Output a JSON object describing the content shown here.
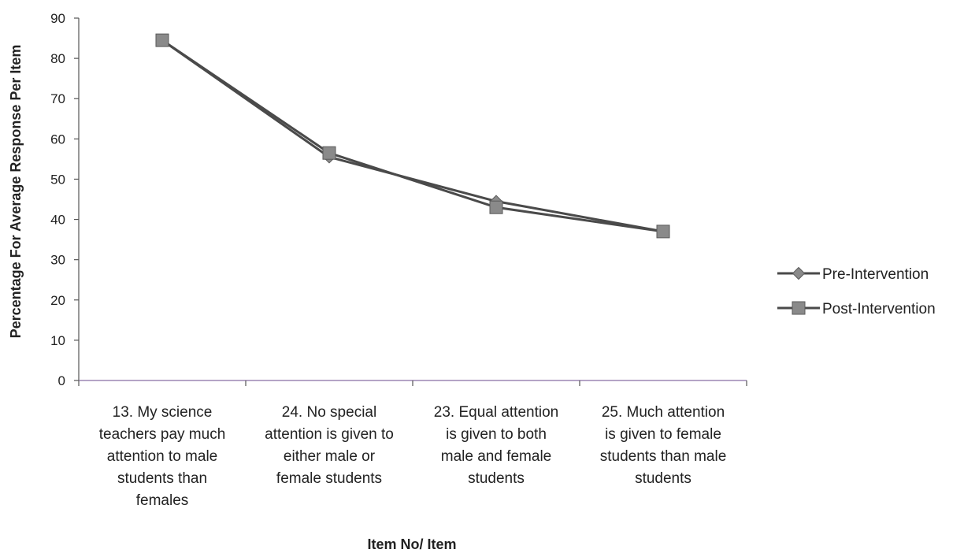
{
  "chart_data": {
    "type": "line",
    "categories": [
      [
        "13. My science",
        "teachers pay much",
        "attention to male",
        "students than",
        "females"
      ],
      [
        "24. No special",
        "attention is given to",
        "either male or",
        "female students"
      ],
      [
        "23. Equal attention",
        "is given to both",
        "male and female",
        "students"
      ],
      [
        "25. Much attention",
        "is given to female",
        "students than male",
        "students"
      ]
    ],
    "series": [
      {
        "name": "Pre-Intervention",
        "marker": "diamond",
        "values": [
          84.5,
          55.5,
          44.5,
          37
        ]
      },
      {
        "name": "Post-Intervention",
        "marker": "square",
        "values": [
          84.5,
          56.5,
          43,
          37
        ]
      }
    ],
    "xlabel": "Item No/ Item",
    "ylabel": "Percentage For Average Response Per Item",
    "ylim": [
      0,
      90
    ],
    "yticks": [
      0,
      10,
      20,
      30,
      40,
      50,
      60,
      70,
      80,
      90
    ],
    "grid": false,
    "legend": "right",
    "colors": {
      "line": "#4a4a4a",
      "marker": "#8a8a8a",
      "axis": "#555555",
      "baseline": "#9b86b4"
    }
  }
}
